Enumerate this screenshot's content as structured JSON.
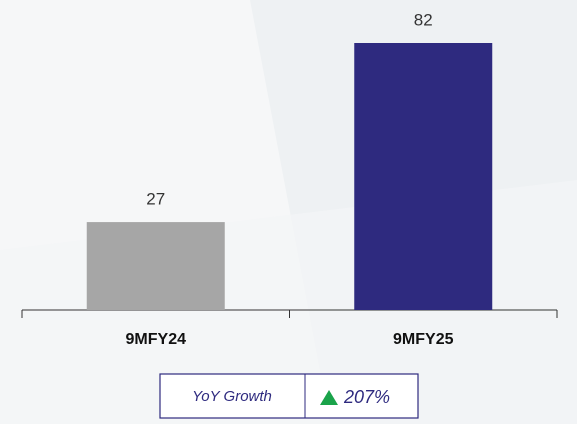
{
  "chart_data": {
    "type": "bar",
    "categories": [
      "9MFY24",
      "9MFY25"
    ],
    "values": [
      27,
      82
    ],
    "colors": [
      "#a6a6a6",
      "#2e2a7f"
    ],
    "annotation": {
      "label": "YoY Growth",
      "value": "207%"
    }
  }
}
